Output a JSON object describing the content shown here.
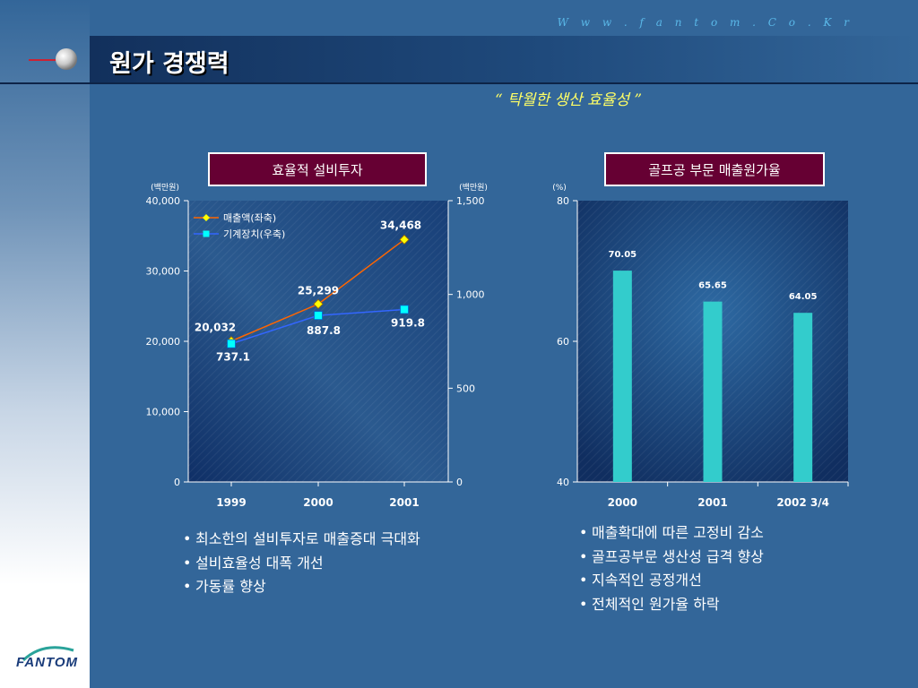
{
  "header": {
    "url": "W w w . f a n t o m . C o . K r",
    "title": "원가 경쟁력",
    "subtitle": "“ 탁월한 생산 효율성 ”"
  },
  "left_panel": {
    "label": "효율적 설비투자",
    "unit_left": "(백만원)",
    "unit_right": "(백만원)",
    "bullets": [
      "최소한의 설비투자로 매출증대 극대화",
      "설비효율성 대폭 개선",
      "가동률 향상"
    ]
  },
  "right_panel": {
    "label": "골프공 부문 매출원가율",
    "unit": "(%)",
    "bullets": [
      "매출확대에 따른 고정비 감소",
      "골프공부문 생산성 급격 향상",
      "지속적인 공정개선",
      "전체적인 원가율 하락"
    ]
  },
  "logo": {
    "text": "FANTOM"
  },
  "chart_data": [
    {
      "type": "line",
      "categories": [
        "1999",
        "2000",
        "2001"
      ],
      "y_left": {
        "min": 0,
        "max": 40000,
        "ticks": [
          "0",
          "10,000",
          "20,000",
          "30,000",
          "40,000"
        ]
      },
      "y_right": {
        "min": 0,
        "max": 1500,
        "ticks": [
          "0",
          "500",
          "1,000",
          "1,500"
        ]
      },
      "series": [
        {
          "name": "매출액(좌축)",
          "axis": "left",
          "values": [
            20032,
            25299,
            34468
          ],
          "labels": [
            "20,032",
            "25,299",
            "34,468"
          ],
          "color": "#ff6600",
          "marker_color": "#ffff00",
          "marker": "diamond"
        },
        {
          "name": "기계장치(우축)",
          "axis": "right",
          "values": [
            737.1,
            887.8,
            919.8
          ],
          "labels": [
            "737.1",
            "887.8",
            "919.8"
          ],
          "color": "#3366ff",
          "marker_color": "#00ffff",
          "marker": "square"
        }
      ],
      "legend": "top-left",
      "grid": false
    },
    {
      "type": "bar",
      "categories": [
        "2000",
        "2001",
        "2002 3/4"
      ],
      "values": [
        70.05,
        65.65,
        64.05
      ],
      "labels": [
        "70.05",
        "65.65",
        "64.05"
      ],
      "ylim": [
        40,
        80
      ],
      "ticks": [
        "40",
        "60",
        "80"
      ],
      "bar_color": "#33cccc",
      "grid": false
    }
  ]
}
